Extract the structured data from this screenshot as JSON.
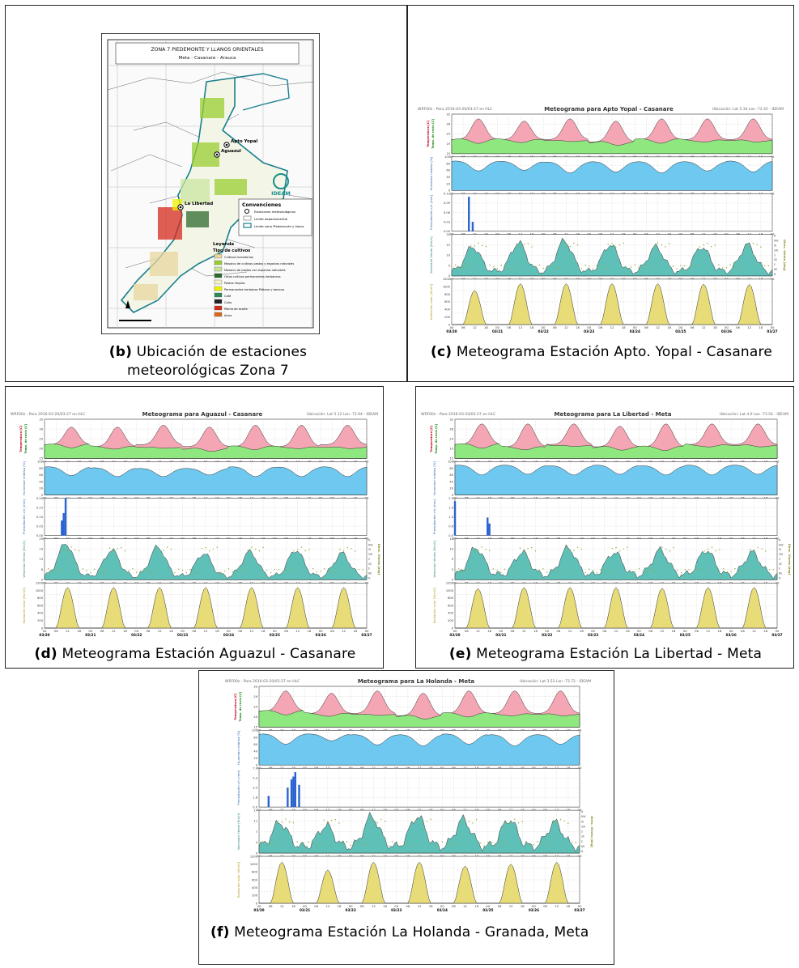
{
  "panels": {
    "b": {
      "tag": "(b)",
      "caption": "Ubicación de estaciones meteorológicas Zona 7",
      "map": {
        "title": "ZONA 7  PIEDEMONTE Y LLANOS ORIENTALES",
        "subtitle": "Meta - Casanare - Arauca",
        "stations": [
          "Apto Yopal",
          "Aguazul",
          "La Libertad"
        ],
        "convenciones_title": "Convenciones",
        "convenciones": [
          "Estaciones meteorológicas",
          "Límite departamental",
          "Límite zona Piedemonte y llanos"
        ],
        "leyenda_title": "Leyenda",
        "leyenda_subtitle": "Tipo de cultivos",
        "leyenda_items": [
          {
            "label": "Cultivos transitorios",
            "color": "#e8d7a0"
          },
          {
            "label": "Mosaico de cultivos pastos y espacios naturales",
            "color": "#9acd32"
          },
          {
            "label": "Mosaico de pastos con espacios naturales",
            "color": "#c9e6a0"
          },
          {
            "label": "Otros cultivos permanentes herbáceos",
            "color": "#2e6b2e"
          },
          {
            "label": "Pastos limpios",
            "color": "#f3f1c6"
          },
          {
            "label": "Permanentes herbáceo Plátano y banano",
            "color": "#f2f200"
          },
          {
            "label": "Café",
            "color": "#2e8b57"
          },
          {
            "label": "Caña",
            "color": "#222222"
          },
          {
            "label": "Palma de aceite",
            "color": "#d42a1c"
          },
          {
            "label": "Arroz",
            "color": "#d86a1a"
          }
        ],
        "logo_text": "IDEAM"
      }
    },
    "c": {
      "tag": "(c)",
      "caption": "Meteograma Estación Apto. Yopal - Casanare",
      "title": "Meteograma para Apto Yopal - Casanare",
      "header_left": "WRF00z - Para 2016-03-20/03-27 en HLC",
      "header_right": "Ubicación: Lat 5.34 Lon -72.41 - IDEAM"
    },
    "d": {
      "tag": "(d)",
      "caption": "Meteograma Estación Aguazul - Casanare",
      "title": "Meteograma para Aguazul - Casanare",
      "header_left": "WRF00z - Para 2016-03-20/03-27 en HLC",
      "header_right": "Ubicación: Lat 5.12 Lon -72.64 - IDEAM"
    },
    "e": {
      "tag": "(e)",
      "caption": "Meteograma Estación La Libertad - Meta",
      "title": "Meteograma para La Libertad - Meta",
      "header_left": "WRF00z - Para 2016-03-20/03-27 en HLC",
      "header_right": "Ubicación: Lat 4.0 Lon -73.54 - IDEAM"
    },
    "f": {
      "tag": "(f)",
      "caption": "Meteograma Estación La Holanda - Granada, Meta",
      "title": "Meteograma para La Holanda - Meta",
      "header_left": "WRF00z - Para 2016-03-20/03-27 en HLC",
      "header_right": "Ubicación: Lat 3.52 Lon -73.72 - IDEAM"
    }
  },
  "meteogram_common": {
    "hour_ticks": [
      "00",
      "06",
      "12",
      "18"
    ],
    "date_ticks": [
      "03/20",
      "03/21",
      "03/22",
      "03/23",
      "03/24",
      "03/25",
      "03/26",
      "03/27"
    ],
    "ylabels": {
      "temp": "Temperatura [C]",
      "dew": "Temp. de rocío [C]",
      "rh": "Humedad relativa [%]",
      "precip": "Precipitación c/h [mm]",
      "wind": "Velocidad Viento [Km/h]",
      "winddir": "Direc. Viento [deg]",
      "rad": "Radiación solar [W/m2]"
    },
    "compass": [
      "N",
      "NW",
      "W",
      "SW",
      "S",
      "SE",
      "E",
      "NE",
      "N"
    ],
    "colors": {
      "temp_fill": "#f4a6b4",
      "dew_fill": "#8fe87f",
      "rh_fill": "#6ec8ef",
      "precip_bar": "#2a63cf",
      "wind_fill": "#5fc0b8",
      "wind_dir": "#9aa836",
      "rad_fill": "#e8dc78"
    }
  },
  "chart_data": [
    {
      "type": "area",
      "title": "Meteograma para Apto Yopal - Casanare",
      "x": [
        "03/20",
        "03/21",
        "03/22",
        "03/23",
        "03/24",
        "03/25",
        "03/26",
        "03/27"
      ],
      "series": [
        {
          "name": "Temperatura [C]",
          "ylim": [
            15,
            32
          ],
          "day_max": [
            30,
            29,
            30,
            29,
            30,
            30,
            30
          ],
          "night_min": [
            21,
            21,
            21,
            20,
            21,
            21,
            21
          ]
        },
        {
          "name": "Temp. de rocío [C]",
          "ylim": [
            15,
            32
          ],
          "mean": [
            21,
            21,
            21,
            20,
            21,
            21,
            21
          ]
        },
        {
          "name": "Humedad relativa [%]",
          "ylim": [
            0,
            100
          ],
          "day_min": [
            58,
            60,
            52,
            55,
            52,
            58,
            55
          ],
          "night_max": [
            88,
            87,
            85,
            86,
            86,
            86,
            88
          ]
        },
        {
          "name": "Precipitación c/h [mm]",
          "ylim": [
            0,
            0.12
          ],
          "peaks": [
            {
              "day": 0,
              "hour": 9,
              "value": 0.11
            },
            {
              "day": 0,
              "hour": 11,
              "value": 0.03
            }
          ]
        },
        {
          "name": "Velocidad Viento [Km/h]",
          "ylim": [
            0,
            20
          ],
          "day_max": [
            14,
            16,
            17,
            15,
            14,
            14,
            15
          ]
        },
        {
          "name": "Radiación solar [W/m2]",
          "ylim": [
            0,
            1200
          ],
          "day_max": [
            900,
            1080,
            1080,
            1080,
            1080,
            1070,
            1060
          ]
        }
      ]
    },
    {
      "type": "area",
      "title": "Meteograma para Aguazul - Casanare",
      "x": [
        "03/20",
        "03/21",
        "03/22",
        "03/23",
        "03/24",
        "03/25",
        "03/26",
        "03/27"
      ],
      "series": [
        {
          "name": "Temperatura [C]",
          "ylim": [
            15,
            35
          ],
          "day_max": [
            31,
            31,
            32,
            31,
            32,
            32,
            32
          ],
          "night_min": [
            22,
            21,
            22,
            21,
            21,
            21,
            22
          ]
        },
        {
          "name": "Temp. de rocío [C]",
          "ylim": [
            15,
            35
          ],
          "mean": [
            22,
            21,
            21,
            20,
            21,
            21,
            21
          ]
        },
        {
          "name": "Humedad relativa [%]",
          "ylim": [
            0,
            100
          ],
          "day_min": [
            58,
            55,
            55,
            60,
            55,
            55,
            55
          ],
          "night_max": [
            85,
            82,
            80,
            80,
            85,
            84,
            85
          ]
        },
        {
          "name": "Precipitación c/h [mm]",
          "ylim": [
            0,
            0.2
          ],
          "peaks": [
            {
              "day": 0,
              "hour": 9,
              "value": 0.08
            },
            {
              "day": 0,
              "hour": 10,
              "value": 0.12
            },
            {
              "day": 0,
              "hour": 11,
              "value": 0.2
            }
          ]
        },
        {
          "name": "Velocidad Viento [Km/h]",
          "ylim": [
            0,
            25
          ],
          "day_max": [
            22,
            18,
            20,
            16,
            17,
            18,
            16
          ]
        },
        {
          "name": "Radiación solar [W/m2]",
          "ylim": [
            0,
            1200
          ],
          "day_max": [
            1080,
            1080,
            1080,
            1080,
            1080,
            1080,
            1080
          ]
        }
      ]
    },
    {
      "type": "area",
      "title": "Meteograma para La Libertad - Meta",
      "x": [
        "03/20",
        "03/21",
        "03/22",
        "03/23",
        "03/24",
        "03/25",
        "03/26",
        "03/27"
      ],
      "series": [
        {
          "name": "Temperatura [C]",
          "ylim": [
            15,
            32
          ],
          "day_max": [
            30,
            30,
            30,
            29,
            30,
            30,
            30
          ],
          "night_min": [
            21,
            20,
            21,
            20,
            20,
            21,
            21
          ]
        },
        {
          "name": "Temp. de rocío [C]",
          "ylim": [
            15,
            32
          ],
          "mean": [
            21,
            20,
            21,
            20,
            20,
            21,
            21
          ]
        },
        {
          "name": "Humedad relativa [%]",
          "ylim": [
            0,
            100
          ],
          "day_min": [
            60,
            62,
            60,
            62,
            60,
            60,
            62
          ],
          "night_max": [
            90,
            90,
            88,
            90,
            88,
            90,
            90
          ]
        },
        {
          "name": "Precipitación c/h [mm]",
          "ylim": [
            0,
            2.5
          ],
          "peaks": [
            {
              "day": 0,
              "hour": 0,
              "value": 2.3
            },
            {
              "day": 0,
              "hour": 17,
              "value": 1.2
            },
            {
              "day": 0,
              "hour": 18,
              "value": 0.8
            }
          ]
        },
        {
          "name": "Velocidad Viento [Km/h]",
          "ylim": [
            0,
            18
          ],
          "day_max": [
            14,
            12,
            14,
            12,
            13,
            13,
            12
          ]
        },
        {
          "name": "Radiación solar [W/m2]",
          "ylim": [
            0,
            1200
          ],
          "day_max": [
            1050,
            1080,
            1080,
            1080,
            1060,
            1080,
            1080
          ]
        }
      ]
    },
    {
      "type": "area",
      "title": "Meteograma para La Holanda - Meta",
      "x": [
        "03/20",
        "03/21",
        "03/22",
        "03/23",
        "03/24",
        "03/25",
        "03/26",
        "03/27"
      ],
      "series": [
        {
          "name": "Temperatura [C]",
          "ylim": [
            15,
            33
          ],
          "day_max": [
            31,
            30,
            31,
            30,
            31,
            31,
            31
          ],
          "night_min": [
            22,
            21,
            21,
            20,
            21,
            21,
            21
          ]
        },
        {
          "name": "Temp. de rocío [C]",
          "ylim": [
            15,
            33
          ],
          "mean": [
            22,
            21,
            21,
            20,
            21,
            21,
            21
          ]
        },
        {
          "name": "Humedad relativa [%]",
          "ylim": [
            0,
            100
          ],
          "day_min": [
            60,
            70,
            58,
            55,
            60,
            55,
            60
          ],
          "night_max": [
            90,
            90,
            88,
            88,
            90,
            88,
            88
          ]
        },
        {
          "name": "Precipitación c/h [mm]",
          "ylim": [
            0,
            7
          ],
          "peaks": [
            {
              "day": 0,
              "hour": 5,
              "value": 2
            },
            {
              "day": 0,
              "hour": 15,
              "value": 3.5
            },
            {
              "day": 0,
              "hour": 17,
              "value": 5
            },
            {
              "day": 0,
              "hour": 18,
              "value": 5.5
            },
            {
              "day": 0,
              "hour": 19,
              "value": 6.3
            },
            {
              "day": 0,
              "hour": 21,
              "value": 4
            }
          ]
        },
        {
          "name": "Velocidad Viento [Km/h]",
          "ylim": [
            0,
            14
          ],
          "day_max": [
            10,
            9,
            12,
            12,
            11,
            11,
            10
          ]
        },
        {
          "name": "Radiación solar [W/m2]",
          "ylim": [
            0,
            1200
          ],
          "day_max": [
            1050,
            850,
            1050,
            1050,
            950,
            1000,
            1050
          ]
        }
      ]
    }
  ]
}
